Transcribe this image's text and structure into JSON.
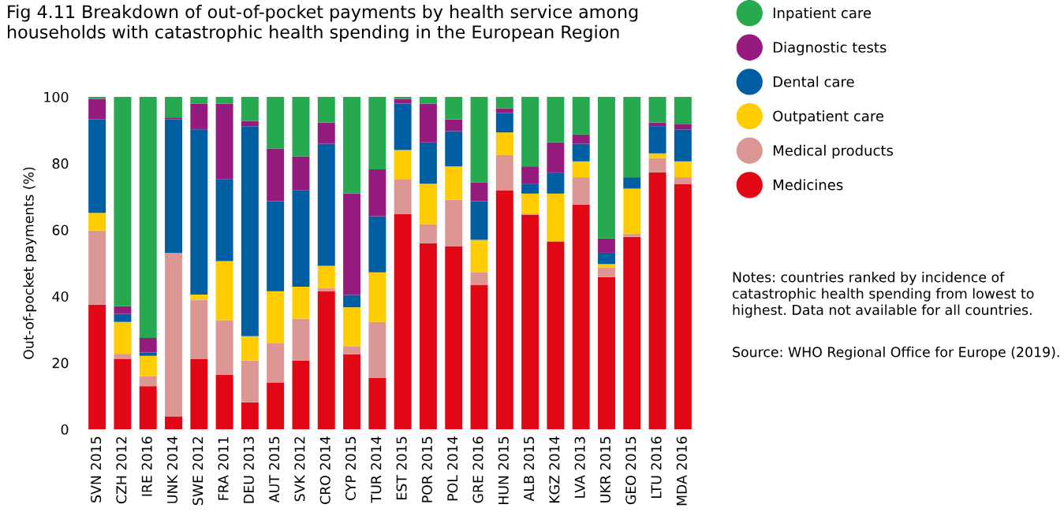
{
  "chart_data": {
    "type": "bar",
    "stacked": true,
    "title": "Fig 4.11 Breakdown of out-of-pocket payments by health service among\nhouseholds with catastrophic health spending in the European Region",
    "ylabel": "Out-of-pocket payments (%)",
    "categories": [
      "SVN 2015",
      "CZH 2012",
      "IRE 2016",
      "UNK 2014",
      "SWE 2012",
      "FRA 2011",
      "DEU 2013",
      "AUT 2015",
      "SVK 2012",
      "CRO 2014",
      "CYP 2015",
      "TUR 2014",
      "EST 2015",
      "POR 2015",
      "POL 2014",
      "GRE 2016",
      "HUN 2015",
      "ALB 2015",
      "KGZ 2014",
      "LVA 2013",
      "UKR 2015",
      "GEO 2015",
      "LTU 2016",
      "MDA 2016"
    ],
    "series": [
      {
        "name": "Medicines",
        "color": "#e20714",
        "values": [
          37.5,
          21.2,
          13.0,
          3.9,
          21.2,
          16.4,
          8.1,
          14.0,
          20.7,
          41.5,
          22.6,
          15.4,
          64.7,
          56.0,
          55.1,
          43.4,
          71.9,
          64.6,
          56.5,
          67.6,
          45.8,
          57.9,
          77.3,
          73.8
        ]
      },
      {
        "name": "Medical products",
        "color": "#dc9693",
        "values": [
          22.3,
          1.5,
          2.9,
          49.2,
          17.8,
          16.4,
          12.6,
          12.0,
          12.6,
          0.9,
          2.4,
          16.9,
          10.6,
          5.7,
          13.9,
          3.8,
          10.6,
          0.3,
          0,
          8.2,
          2.9,
          0.9,
          4.3,
          2.0
        ]
      },
      {
        "name": "Outpatient care",
        "color": "#ffcc00",
        "values": [
          5.3,
          9.6,
          6.2,
          0,
          1.5,
          17.8,
          7.3,
          15.5,
          9.6,
          6.8,
          11.7,
          14.9,
          8.7,
          12.2,
          10.1,
          9.8,
          6.8,
          6.0,
          14.4,
          4.8,
          1.0,
          13.6,
          1.4,
          4.8
        ]
      },
      {
        "name": "Dental care",
        "color": "#005ea3",
        "values": [
          28.1,
          2.4,
          1.0,
          40.1,
          49.7,
          24.7,
          63.2,
          27.1,
          29.1,
          36.7,
          3.7,
          16.9,
          14.0,
          12.4,
          10.6,
          11.6,
          5.8,
          3.0,
          6.3,
          5.3,
          3.4,
          3.4,
          8.2,
          9.6
        ]
      },
      {
        "name": "Diagnostic tests",
        "color": "#951b7e",
        "values": [
          6.2,
          2.3,
          4.4,
          0.6,
          7.8,
          22.7,
          1.5,
          15.9,
          10.1,
          6.4,
          30.5,
          14.1,
          1.4,
          11.7,
          3.5,
          5.7,
          1.4,
          5.2,
          9.1,
          2.8,
          4.3,
          0,
          1.1,
          1.5
        ]
      },
      {
        "name": "Inpatient care",
        "color": "#27a94f",
        "values": [
          0.6,
          63.0,
          72.5,
          6.2,
          2.0,
          2.0,
          7.3,
          15.5,
          17.9,
          7.7,
          29.1,
          21.8,
          0.6,
          2.0,
          6.8,
          25.7,
          3.5,
          20.9,
          13.7,
          11.3,
          42.6,
          24.2,
          7.7,
          8.3
        ]
      }
    ],
    "ylim": [
      0,
      100
    ],
    "yticks": [
      0,
      20,
      40,
      60,
      80,
      100
    ],
    "grid": false,
    "legend": "right",
    "annotations": [
      "Notes: countries ranked by incidence of catastrophic health spending from lowest to highest. Data not available for all countries.",
      "Source: WHO Regional Office for Europe (2019)."
    ]
  }
}
